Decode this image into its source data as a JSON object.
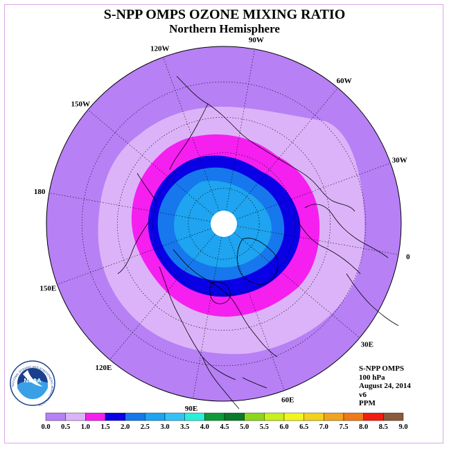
{
  "title": "S-NPP OMPS OZONE MIXING RATIO",
  "subtitle": "Northern Hemisphere",
  "longitude_labels": [
    {
      "label": "90E",
      "lon": 90
    },
    {
      "label": "60E",
      "lon": 60
    },
    {
      "label": "30E",
      "lon": 30
    },
    {
      "label": "0",
      "lon": 0
    },
    {
      "label": "30W",
      "lon": -30
    },
    {
      "label": "60W",
      "lon": -60
    },
    {
      "label": "90W",
      "lon": -90
    },
    {
      "label": "120W",
      "lon": -120
    },
    {
      "label": "150W",
      "lon": -150
    },
    {
      "label": "180",
      "lon": 180
    },
    {
      "label": "150E",
      "lon": 150
    },
    {
      "label": "120E",
      "lon": 120
    }
  ],
  "info": {
    "instrument": "S-NPP OMPS",
    "level": "100 hPa",
    "date": "August 24, 2014",
    "version": "v6",
    "units": "PPM"
  },
  "colorbar": {
    "ticks": [
      "0.0",
      "0.5",
      "1.0",
      "1.5",
      "2.0",
      "2.5",
      "3.0",
      "3.5",
      "4.0",
      "4.5",
      "5.0",
      "5.5",
      "6.0",
      "6.5",
      "7.0",
      "7.5",
      "8.0",
      "8.5",
      "9.0"
    ],
    "colors": [
      "#b780f5",
      "#dcb3f8",
      "#f51ff0",
      "#0a00e6",
      "#1678ec",
      "#1ea4f0",
      "#34c2f6",
      "#28f0d8",
      "#0e9a3a",
      "#0a7a2a",
      "#8cd61c",
      "#c8f01a",
      "#f2f51e",
      "#f2d21a",
      "#f0a51e",
      "#f07a18",
      "#f01e12",
      "#8a5a3a"
    ]
  },
  "colors": {
    "ocean_bg": "#b780f5",
    "band_0.5_1.0": "#dcb3f8",
    "band_1.0_1.5": "#f51ff0",
    "band_1.5_2.0": "#0a00e6",
    "band_2.0_2.5": "#1678ec",
    "band_2.5_3.0": "#1ea4f0",
    "polar_gap": "#ffffff"
  },
  "logo": {
    "text": "NOAA",
    "ring_text": "NATIONAL OCEANIC AND ATMOSPHERIC ADMINISTRATION"
  }
}
